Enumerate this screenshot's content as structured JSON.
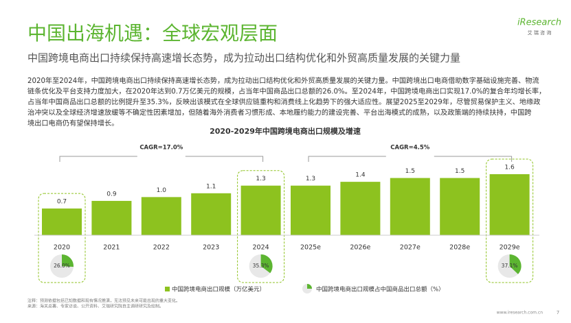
{
  "header": {
    "title": "中国出海机遇：全球宏观层面",
    "subtitle": "中国跨境电商出口持续保持高速增长态势，成为拉动出口结构优化和外贸高质量发展的关键力量",
    "logo": "iResearch",
    "logo_cn": "艾 瑞 咨 询"
  },
  "body": {
    "lines": [
      "2020年至2024年，中国跨境电商出口持续保持高速增长态势，成为拉动出口结构优化和外贸高质量发展的关键力量。中国跨境出口电商借助数字基础设施完善、物流",
      "链条优化及平台支持力度加大，在2020年达到0.7万亿美元的规模，占当年中国商品出口总额的26.0%。至2024年，中国跨境电商出口实现17.0%的复合年均增长率，",
      "占当年中国商品出口总额的比例提升至35.3%，反映出该模式在全球供应链重构和消费线上化趋势下的强大适应性。展望2025至2029年，尽管贸易保护主义、地缘政",
      "治冲突以及全球经济增速放缓等不确定性因素增加，但随着海外消费者习惯形成、本地履约能力的建设完善、平台出海模式的成熟，以及政策端的持续扶持，中国跨",
      "境出口电商仍有望保持增长。"
    ]
  },
  "chart_data": {
    "type": "bar",
    "title": "2020-2029年中国跨境电商出口规模及增速",
    "categories": [
      "2020",
      "2021",
      "2022",
      "2023",
      "2024",
      "2025e",
      "2026e",
      "2027e",
      "2028e",
      "2029e"
    ],
    "series": [
      {
        "name": "中国跨境电商出口规模（万亿美元）",
        "color": "#8dc21f",
        "values": [
          0.7,
          0.9,
          1.0,
          1.1,
          1.3,
          1.3,
          1.4,
          1.5,
          1.5,
          1.6
        ],
        "value_labels": [
          "0.7",
          "0.9",
          "1.0",
          "1.1",
          "1.3",
          "1.3",
          "1.4",
          "1.5",
          "1.5",
          "1.6"
        ]
      },
      {
        "name": "中国跨境电商出口规模占中国商品出口总额（%）",
        "color": "#5cb531",
        "type": "pie",
        "values": [
          26.0,
          null,
          null,
          null,
          35.3,
          null,
          null,
          null,
          null,
          37.1
        ],
        "value_labels": [
          "26.0%",
          null,
          null,
          null,
          "35.3%",
          null,
          null,
          null,
          null,
          "37.1%"
        ]
      }
    ],
    "annotations": [
      "CAGR=17.0%",
      "CAGR=4.5%"
    ]
  },
  "footer": {
    "notes": [
      "注释：预测依据包括已知数据和现有情况推演，无法预见未来可能出现的重大变化。",
      "来源：海关总署、专家访谈、公开资料、艾瑞研究院自主调研研究及绘制。"
    ],
    "site": "www.iresearch.com.cn",
    "page": "7"
  }
}
